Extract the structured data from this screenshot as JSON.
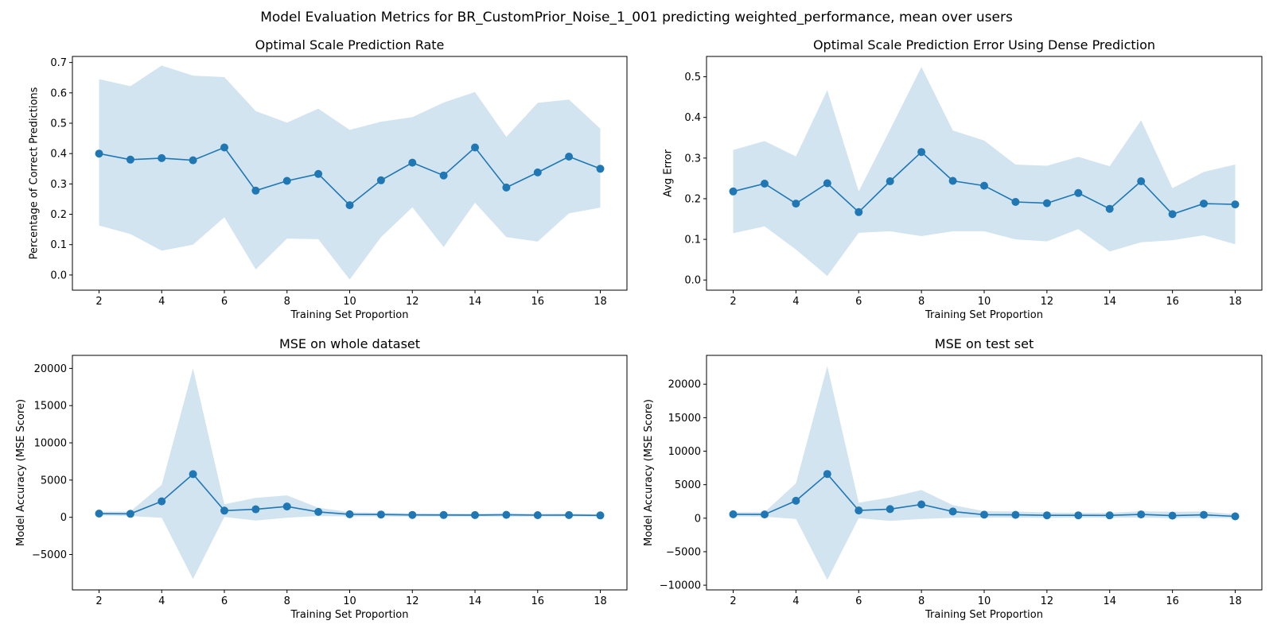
{
  "suptitle": "Model Evaluation Metrics for BR_CustomPrior_Noise_1_001 predicting weighted_performance, mean over users",
  "colors": {
    "line": "#1f77b4",
    "band": "#1f77b4",
    "band_opacity": 0.2
  },
  "chart_data": [
    {
      "type": "line",
      "title": "Optimal Scale Prediction Rate",
      "xlabel": "Training Set Proportion",
      "ylabel": "Percentage of Correct Predictions",
      "xlim": [
        1.15,
        18.85
      ],
      "ylim": [
        -0.05,
        0.72
      ],
      "xticks": [
        2,
        4,
        6,
        8,
        10,
        12,
        14,
        16,
        18
      ],
      "yticks": [
        0.0,
        0.1,
        0.2,
        0.3,
        0.4,
        0.5,
        0.6,
        0.7
      ],
      "ytick_labels": [
        "0.0",
        "0.1",
        "0.2",
        "0.3",
        "0.4",
        "0.5",
        "0.6",
        "0.7"
      ],
      "x": [
        2,
        3,
        4,
        5,
        6,
        7,
        8,
        9,
        10,
        11,
        12,
        13,
        14,
        15,
        16,
        17,
        18
      ],
      "mean": [
        0.4,
        0.38,
        0.385,
        0.378,
        0.42,
        0.278,
        0.31,
        0.333,
        0.23,
        0.312,
        0.37,
        0.328,
        0.42,
        0.288,
        0.338,
        0.39,
        0.35
      ],
      "upper": [
        0.645,
        0.622,
        0.69,
        0.657,
        0.652,
        0.54,
        0.502,
        0.548,
        0.478,
        0.505,
        0.52,
        0.568,
        0.603,
        0.455,
        0.567,
        0.578,
        0.482
      ],
      "lower": [
        0.163,
        0.135,
        0.08,
        0.1,
        0.19,
        0.018,
        0.12,
        0.118,
        -0.015,
        0.125,
        0.223,
        0.092,
        0.238,
        0.125,
        0.11,
        0.203,
        0.222
      ],
      "grid": false,
      "legend": "none"
    },
    {
      "type": "line",
      "title": "Optimal Scale Prediction Error Using Dense Prediction",
      "xlabel": "Training Set Proportion",
      "ylabel": "Avg Error",
      "xlim": [
        1.15,
        18.85
      ],
      "ylim": [
        -0.025,
        0.55
      ],
      "xticks": [
        2,
        4,
        6,
        8,
        10,
        12,
        14,
        16,
        18
      ],
      "yticks": [
        0.0,
        0.1,
        0.2,
        0.3,
        0.4,
        0.5
      ],
      "ytick_labels": [
        "0.0",
        "0.1",
        "0.2",
        "0.3",
        "0.4",
        "0.5"
      ],
      "x": [
        2,
        3,
        4,
        5,
        6,
        7,
        8,
        9,
        10,
        11,
        12,
        13,
        14,
        15,
        16,
        17,
        18
      ],
      "mean": [
        0.218,
        0.237,
        0.188,
        0.238,
        0.167,
        0.243,
        0.315,
        0.244,
        0.232,
        0.192,
        0.189,
        0.214,
        0.175,
        0.243,
        0.162,
        0.188,
        0.186
      ],
      "upper": [
        0.32,
        0.342,
        0.304,
        0.467,
        0.218,
        0.37,
        0.524,
        0.368,
        0.343,
        0.284,
        0.281,
        0.303,
        0.28,
        0.393,
        0.226,
        0.266,
        0.284
      ],
      "lower": [
        0.115,
        0.132,
        0.075,
        0.01,
        0.116,
        0.12,
        0.108,
        0.12,
        0.12,
        0.1,
        0.095,
        0.125,
        0.07,
        0.093,
        0.098,
        0.11,
        0.088
      ],
      "grid": false,
      "legend": "none"
    },
    {
      "type": "line",
      "title": "MSE on whole dataset",
      "xlabel": "Training Set Proportion",
      "ylabel": "Model Accuracy (MSE Score)",
      "xlim": [
        1.15,
        18.85
      ],
      "ylim": [
        -9750,
        21750
      ],
      "xticks": [
        2,
        4,
        6,
        8,
        10,
        12,
        14,
        16,
        18
      ],
      "yticks": [
        -5000,
        0,
        5000,
        10000,
        15000,
        20000
      ],
      "ytick_labels": [
        "−5000",
        "0",
        "5000",
        "10000",
        "15000",
        "20000"
      ],
      "x": [
        2,
        3,
        4,
        5,
        6,
        7,
        8,
        9,
        10,
        11,
        12,
        13,
        14,
        15,
        16,
        17,
        18
      ],
      "mean": [
        500,
        470,
        2150,
        5800,
        900,
        1080,
        1450,
        730,
        400,
        370,
        320,
        310,
        300,
        330,
        290,
        300,
        250
      ],
      "upper": [
        760,
        780,
        4350,
        20000,
        1750,
        2600,
        2950,
        1290,
        680,
        620,
        540,
        520,
        500,
        560,
        490,
        500,
        420
      ],
      "lower": [
        240,
        160,
        -50,
        -8300,
        50,
        -440,
        -50,
        170,
        120,
        120,
        100,
        100,
        100,
        100,
        90,
        100,
        80
      ],
      "grid": false,
      "legend": "none"
    },
    {
      "type": "line",
      "title": "MSE on test set",
      "xlabel": "Training Set Proportion",
      "ylabel": "Model Accuracy (MSE Score)",
      "xlim": [
        1.15,
        18.85
      ],
      "ylim": [
        -10700,
        24300
      ],
      "xticks": [
        2,
        4,
        6,
        8,
        10,
        12,
        14,
        16,
        18
      ],
      "yticks": [
        -10000,
        -5000,
        0,
        5000,
        10000,
        15000,
        20000
      ],
      "ytick_labels": [
        "−10000",
        "−5000",
        "0",
        "5000",
        "10000",
        "15000",
        "20000"
      ],
      "x": [
        2,
        3,
        4,
        5,
        6,
        7,
        8,
        9,
        10,
        11,
        12,
        13,
        14,
        15,
        16,
        17,
        18
      ],
      "mean": [
        580,
        560,
        2600,
        6600,
        1150,
        1350,
        2050,
        1000,
        520,
        500,
        430,
        430,
        420,
        560,
        380,
        500,
        280
      ],
      "upper": [
        900,
        900,
        5200,
        22700,
        2300,
        3100,
        4200,
        1950,
        1050,
        1000,
        850,
        800,
        800,
        1050,
        950,
        1000,
        600
      ],
      "lower": [
        260,
        220,
        -100,
        -9200,
        0,
        -400,
        -100,
        50,
        100,
        80,
        50,
        100,
        80,
        100,
        0,
        50,
        0
      ],
      "grid": false,
      "legend": "none"
    }
  ]
}
